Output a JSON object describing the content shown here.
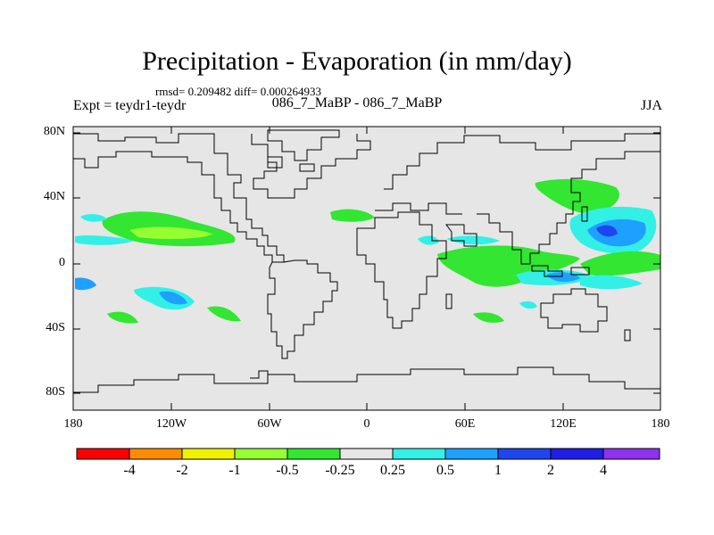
{
  "header": {
    "title": "Precipitation - Evaporation (in mm/day)",
    "stats": "rmsd= 0.209482 diff= 0.000264933",
    "expt": "Expt = teydr1-teydr",
    "subtitle": "086_7_MaBP - 086_7_MaBP",
    "season": "JJA"
  },
  "map": {
    "background_color": "#e6e6e6",
    "y_ticks": [
      "80N",
      "40N",
      "0",
      "40S",
      "80S"
    ],
    "x_ticks": [
      "180",
      "120W",
      "60W",
      "0",
      "60E",
      "120E",
      "180"
    ],
    "anomaly_regions": [
      {
        "name": "n-pacific-band",
        "level": "-0.5",
        "lon": -140,
        "lat": 15
      },
      {
        "name": "n-pacific-core",
        "level": "-1",
        "lon": -135,
        "lat": 14
      },
      {
        "name": "w-atlantic",
        "level": "-0.5",
        "lon": -35,
        "lat": 29
      },
      {
        "name": "w-pacific-n",
        "level": "1",
        "lon": 150,
        "lat": 22
      },
      {
        "name": "w-pacific-n-core",
        "level": "2",
        "lon": 155,
        "lat": 20
      },
      {
        "name": "indian-ocean",
        "level": "-0.5",
        "lon": 75,
        "lat": -5
      },
      {
        "name": "sw-pacific",
        "level": "1",
        "lon": 125,
        "lat": -10
      },
      {
        "name": "s-pacific-east",
        "level": "1",
        "lon": -115,
        "lat": -22
      }
    ]
  },
  "colorbar": {
    "labels": [
      "-4",
      "-2",
      "-1",
      "-0.5",
      "-0.25",
      "0.25",
      "0.5",
      "1",
      "2",
      "4"
    ],
    "colors": [
      "#ff0000",
      "#ff8c00",
      "#f0f000",
      "#96ff32",
      "#32e632",
      "#e6e6e6",
      "#32f0e6",
      "#1ea0ff",
      "#1e46f0",
      "#1e1ee6",
      "#8c32f0"
    ]
  }
}
